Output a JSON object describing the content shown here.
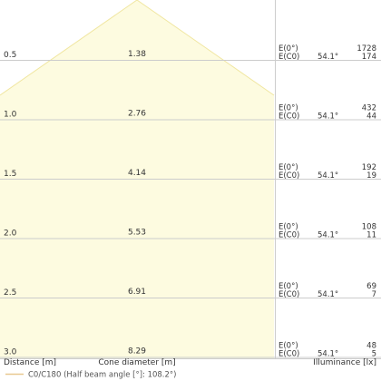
{
  "chart_data": {
    "type": "cone-diagram",
    "xlabel": "Distance [m]",
    "mid_label": "Cone diameter [m]",
    "right_label": "Illuminance [lx]",
    "rows": [
      {
        "distance": "0.5",
        "diameter": "1.38",
        "e0_label": "E(0°)",
        "ec0_label": "E(C0)",
        "angle": "54.1°",
        "e0": "1728",
        "ec0": "174"
      },
      {
        "distance": "1.0",
        "diameter": "2.76",
        "e0_label": "E(0°)",
        "ec0_label": "E(C0)",
        "angle": "54.1°",
        "e0": "432",
        "ec0": "44"
      },
      {
        "distance": "1.5",
        "diameter": "4.14",
        "e0_label": "E(0°)",
        "ec0_label": "E(C0)",
        "angle": "54.1°",
        "e0": "192",
        "ec0": "19"
      },
      {
        "distance": "2.0",
        "diameter": "5.53",
        "e0_label": "E(0°)",
        "ec0_label": "E(C0)",
        "angle": "54.1°",
        "e0": "108",
        "ec0": "11"
      },
      {
        "distance": "2.5",
        "diameter": "6.91",
        "e0_label": "E(0°)",
        "ec0_label": "E(C0)",
        "angle": "54.1°",
        "e0": "69",
        "ec0": "7"
      },
      {
        "distance": "3.0",
        "diameter": "8.29",
        "e0_label": "E(0°)",
        "ec0_label": "E(C0)",
        "angle": "54.1°",
        "e0": "48",
        "ec0": "5"
      }
    ],
    "legend": "C0/C180 (Half beam angle [°]: 108.2°)",
    "colors": {
      "cone_fill": "#fdfbe0",
      "cone_edge": "#f0e6a0",
      "grid": "#cccccc",
      "legend_line": "#e8c890"
    }
  }
}
